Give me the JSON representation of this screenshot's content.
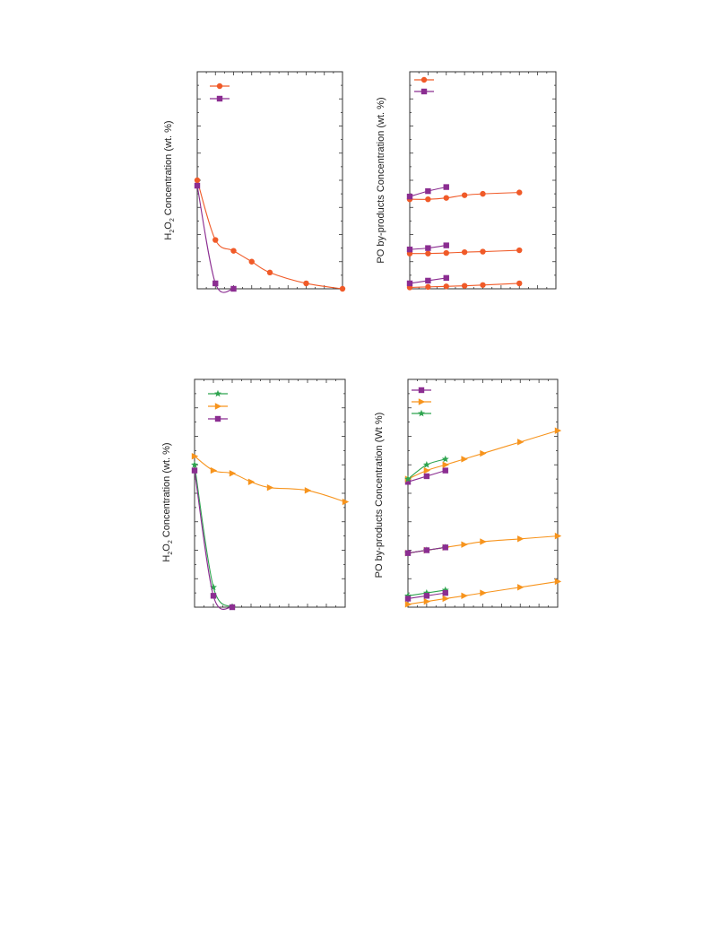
{
  "colors": {
    "orange_red": "#f05a28",
    "purple": "#8b2d91",
    "orange": "#f7941d",
    "green": "#2ea44f"
  },
  "chart_data": [
    {
      "id": "h2o2-top",
      "type": "line",
      "ylabel": "H2O2 Concentration (wt. %)",
      "ylabel_parts": {
        "a": "H",
        "b": "2",
        "c": "O",
        "d": "2",
        "e": " Concentration (wt. %)"
      },
      "xlim": [
        0,
        8
      ],
      "ylim": [
        0,
        8
      ],
      "series": [
        {
          "color": "#f05a28",
          "marker": "circle",
          "x": [
            0,
            1,
            2,
            3,
            4,
            6,
            8
          ],
          "y": [
            4.0,
            1.8,
            1.4,
            1.0,
            0.6,
            0.2,
            0.0
          ]
        },
        {
          "color": "#8b2d91",
          "marker": "square",
          "x": [
            0,
            1,
            2
          ],
          "y": [
            3.8,
            0.2,
            0.0
          ]
        }
      ]
    },
    {
      "id": "po-top",
      "type": "line",
      "ylabel": "PO by-products Concentration (wt. %)",
      "xlim": [
        0,
        8
      ],
      "ylim": [
        0,
        8
      ],
      "series": [
        {
          "color": "#f05a28",
          "marker": "circle",
          "x": [
            0,
            1,
            2,
            3,
            4,
            6
          ],
          "y": [
            3.3,
            3.3,
            3.35,
            3.45,
            3.5,
            3.55
          ]
        },
        {
          "color": "#8b2d91",
          "marker": "square",
          "x": [
            0,
            1,
            2
          ],
          "y": [
            3.4,
            3.6,
            3.75
          ]
        },
        {
          "color": "#f05a28",
          "marker": "circle",
          "x": [
            0,
            1,
            2,
            3,
            4,
            6
          ],
          "y": [
            1.3,
            1.3,
            1.32,
            1.35,
            1.37,
            1.42
          ]
        },
        {
          "color": "#8b2d91",
          "marker": "square",
          "x": [
            0,
            1,
            2
          ],
          "y": [
            1.45,
            1.5,
            1.6
          ]
        },
        {
          "color": "#f05a28",
          "marker": "circle",
          "x": [
            0,
            1,
            2,
            3,
            4,
            6
          ],
          "y": [
            0.05,
            0.07,
            0.09,
            0.11,
            0.14,
            0.2
          ]
        },
        {
          "color": "#8b2d91",
          "marker": "square",
          "x": [
            0,
            1,
            2
          ],
          "y": [
            0.2,
            0.3,
            0.4
          ]
        }
      ]
    },
    {
      "id": "h2o2-bottom",
      "type": "line",
      "ylabel": "H2O2 Concentration (wt. %)",
      "ylabel_parts": {
        "a": "H",
        "b": "2",
        "c": "O",
        "d": "2",
        "e": " Concentration (wt. %)"
      },
      "xlim": [
        0,
        8
      ],
      "ylim": [
        0,
        8
      ],
      "series": [
        {
          "color": "#2ea44f",
          "marker": "star",
          "x": [
            0,
            1,
            2
          ],
          "y": [
            5.0,
            0.7,
            0.0
          ]
        },
        {
          "color": "#f7941d",
          "marker": "triangle-right",
          "x": [
            0,
            1,
            2,
            3,
            4,
            6,
            8
          ],
          "y": [
            5.3,
            4.8,
            4.7,
            4.4,
            4.2,
            4.1,
            3.7
          ]
        },
        {
          "color": "#8b2d91",
          "marker": "square",
          "x": [
            0,
            1,
            2
          ],
          "y": [
            4.8,
            0.4,
            0.0
          ]
        }
      ]
    },
    {
      "id": "po-bottom",
      "type": "line",
      "ylabel": "PO by-products Concentration (Wt %)",
      "xlim": [
        0,
        8
      ],
      "ylim": [
        0,
        8
      ],
      "series": [
        {
          "color": "#8b2d91",
          "marker": "square",
          "x": [
            0,
            1,
            2
          ],
          "y": [
            4.4,
            4.6,
            4.8
          ]
        },
        {
          "color": "#f7941d",
          "marker": "triangle-right",
          "x": [
            0,
            1,
            2,
            3,
            4,
            6,
            8
          ],
          "y": [
            4.5,
            4.8,
            5.0,
            5.2,
            5.4,
            5.8,
            6.2
          ]
        },
        {
          "color": "#2ea44f",
          "marker": "star",
          "x": [
            0,
            1,
            2
          ],
          "y": [
            4.5,
            5.0,
            5.2
          ]
        },
        {
          "color": "#f7941d",
          "marker": "triangle-right",
          "x": [
            0,
            1,
            2,
            3,
            4,
            6,
            8
          ],
          "y": [
            1.9,
            2.0,
            2.1,
            2.2,
            2.3,
            2.4,
            2.5
          ]
        },
        {
          "color": "#2ea44f",
          "marker": "star",
          "x": [
            0,
            1,
            2
          ],
          "y": [
            1.9,
            2.0,
            2.1
          ]
        },
        {
          "color": "#8b2d91",
          "marker": "square",
          "x": [
            0,
            1,
            2
          ],
          "y": [
            1.9,
            2.0,
            2.1
          ]
        },
        {
          "color": "#f7941d",
          "marker": "triangle-right",
          "x": [
            0,
            1,
            2,
            3,
            4,
            6,
            8
          ],
          "y": [
            0.1,
            0.2,
            0.3,
            0.4,
            0.5,
            0.7,
            0.9
          ]
        },
        {
          "color": "#2ea44f",
          "marker": "star",
          "x": [
            0,
            1,
            2
          ],
          "y": [
            0.4,
            0.5,
            0.6
          ]
        },
        {
          "color": "#8b2d91",
          "marker": "square",
          "x": [
            0,
            1,
            2
          ],
          "y": [
            0.3,
            0.4,
            0.5
          ]
        }
      ]
    }
  ]
}
